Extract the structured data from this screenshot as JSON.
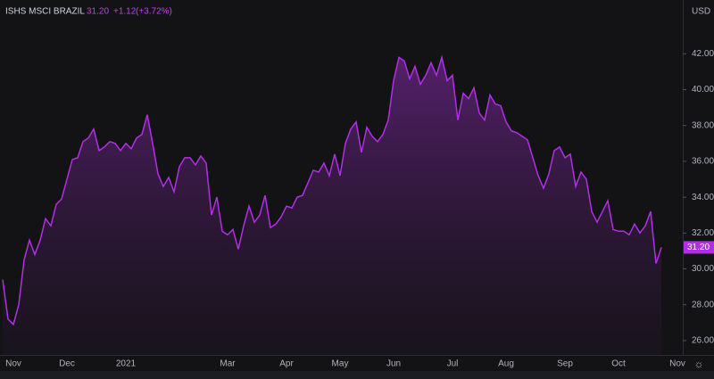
{
  "chart_data": {
    "type": "area",
    "title": "ISHS MSCI BRAZIL",
    "price": "31.20",
    "change": "+1.12",
    "change_pct": "(+3.72%)",
    "currency": "USD",
    "color": "#b22ee6",
    "categories": [
      null,
      null,
      "Nov",
      null,
      null,
      null,
      null,
      null,
      null,
      null,
      null,
      null,
      "Dec",
      null,
      null,
      null,
      null,
      null,
      null,
      null,
      null,
      null,
      null,
      "2021",
      null,
      null,
      null,
      null,
      null,
      null,
      null,
      null,
      null,
      null,
      null,
      null,
      null,
      null,
      null,
      null,
      null,
      null,
      "Mar",
      null,
      null,
      null,
      null,
      null,
      null,
      null,
      null,
      null,
      null,
      "Apr",
      null,
      null,
      null,
      null,
      null,
      null,
      null,
      null,
      null,
      "May",
      null,
      null,
      null,
      null,
      null,
      null,
      null,
      null,
      null,
      "Jun",
      null,
      null,
      null,
      null,
      null,
      null,
      null,
      null,
      null,
      null,
      "Jul",
      null,
      null,
      null,
      null,
      null,
      null,
      null,
      null,
      null,
      "Aug",
      null,
      null,
      null,
      null,
      null,
      null,
      null,
      null,
      null,
      null,
      "Sep",
      null,
      null,
      null,
      null,
      null,
      null,
      null,
      null,
      null,
      "Oct",
      null,
      null,
      null,
      null,
      null,
      null,
      null,
      null,
      null,
      null,
      "Nov",
      null
    ],
    "values": [
      29.4,
      27.2,
      26.9,
      28.0,
      30.5,
      31.6,
      30.8,
      31.6,
      32.8,
      32.4,
      33.6,
      33.9,
      35.0,
      36.1,
      36.2,
      37.1,
      37.3,
      37.8,
      36.6,
      36.8,
      37.1,
      37.0,
      36.6,
      37.0,
      36.7,
      37.3,
      37.5,
      38.6,
      37.0,
      35.3,
      34.6,
      35.1,
      34.3,
      35.7,
      36.2,
      36.2,
      35.8,
      36.3,
      35.9,
      33.0,
      34.0,
      32.1,
      31.9,
      32.2,
      31.1,
      32.4,
      33.5,
      32.6,
      33.0,
      34.1,
      32.3,
      32.5,
      32.9,
      33.5,
      33.4,
      34.0,
      34.1,
      34.8,
      35.5,
      35.4,
      35.9,
      35.2,
      36.4,
      35.2,
      37.0,
      37.8,
      38.2,
      36.5,
      37.9,
      37.4,
      37.1,
      37.5,
      38.3,
      40.5,
      41.8,
      41.6,
      40.6,
      41.3,
      40.3,
      40.8,
      41.5,
      40.8,
      41.8,
      40.5,
      40.8,
      38.3,
      39.8,
      39.5,
      40.1,
      38.7,
      38.3,
      39.7,
      39.2,
      39.1,
      38.2,
      37.7,
      37.6,
      37.4,
      37.2,
      36.2,
      35.2,
      34.5,
      35.3,
      36.6,
      36.8,
      36.2,
      36.4,
      34.6,
      35.4,
      35.0,
      33.2,
      32.6,
      33.2,
      33.8,
      32.2,
      32.1,
      32.1,
      31.9,
      32.5,
      32.0,
      32.4,
      33.2,
      30.3,
      31.2,
      null,
      null,
      null,
      null
    ],
    "ylim": [
      25.2,
      45.0
    ],
    "yticks": [
      {
        "value": 26,
        "label": "26.00"
      },
      {
        "value": 28,
        "label": "28.00"
      },
      {
        "value": 30,
        "label": "30.00"
      },
      {
        "value": 32,
        "label": "32.00"
      },
      {
        "value": 34,
        "label": "34.00"
      },
      {
        "value": 36,
        "label": "36.00"
      },
      {
        "value": 38,
        "label": "38.00"
      },
      {
        "value": 40,
        "label": "40.00"
      },
      {
        "value": 42,
        "label": "42.00"
      }
    ]
  }
}
